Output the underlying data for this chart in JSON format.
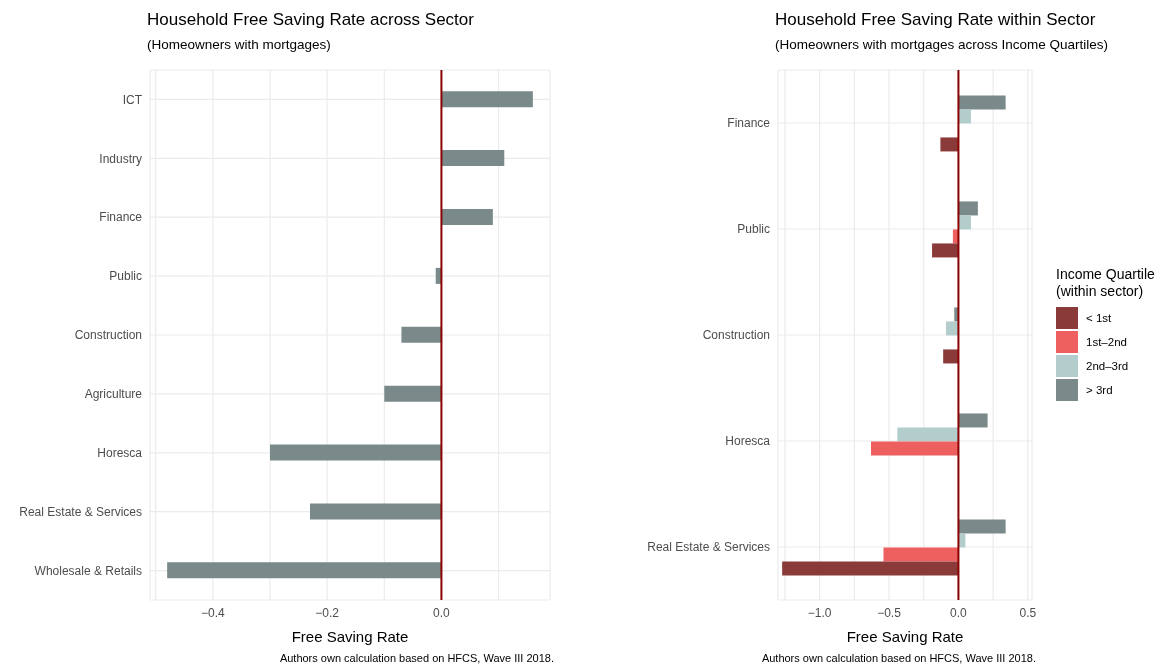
{
  "chart_data": [
    {
      "type": "bar",
      "orientation": "horizontal",
      "title": "Household Free Saving Rate across Sector",
      "subtitle": "(Homeowners with mortgages)",
      "xlabel": "Free Saving Rate",
      "categories": [
        "ICT",
        "Industry",
        "Finance",
        "Public",
        "Construction",
        "Agriculture",
        "Horesca",
        "Real Estate & Services",
        "Wholesale & Retails"
      ],
      "values": [
        0.16,
        0.11,
        0.09,
        -0.01,
        -0.07,
        -0.1,
        -0.3,
        -0.23,
        -0.48
      ],
      "color": "#7a8a8a",
      "xlim": [
        -0.51,
        0.19
      ],
      "xticks": [
        {
          "value": -0.5,
          "label": null
        },
        {
          "value": -0.4,
          "label": "−0.4"
        },
        {
          "value": -0.3,
          "label": null
        },
        {
          "value": -0.2,
          "label": "−0.2"
        },
        {
          "value": -0.1,
          "label": null
        },
        {
          "value": 0,
          "label": "0.0"
        },
        {
          "value": 0.1,
          "label": null
        }
      ],
      "ref_lines": [
        {
          "axis": "x",
          "value": 0,
          "color": "#8b0000"
        }
      ],
      "grid": true,
      "annotations": [
        "Authors own calculation based on HFCS, Wave III 2018."
      ]
    },
    {
      "type": "bar",
      "orientation": "horizontal",
      "title": "Household Free Saving Rate within Sector",
      "subtitle": "(Homeowners with mortgages across Income Quartiles)",
      "xlabel": "Free Saving Rate",
      "categories": [
        "Finance",
        "Public",
        "Construction",
        "Horesca",
        "Real Estate & Services"
      ],
      "series": [
        {
          "name": "< 1st",
          "color": "#8b3a3a",
          "values": [
            -0.13,
            -0.19,
            -0.11,
            null,
            -1.27
          ]
        },
        {
          "name": "1st–2nd",
          "color": "#ee5f5f",
          "values": [
            null,
            -0.04,
            null,
            -0.63,
            -0.54
          ]
        },
        {
          "name": "2nd–3rd",
          "color": "#b3cccc",
          "values": [
            0.09,
            0.09,
            -0.09,
            -0.44,
            0.05
          ]
        },
        {
          "name": "> 3rd",
          "color": "#7a8a8a",
          "values": [
            0.34,
            0.14,
            -0.03,
            0.21,
            0.34
          ]
        }
      ],
      "legend": "right",
      "legend_title": "Income Quartile\n(within sector)",
      "xlim": [
        -1.3,
        0.53
      ],
      "xticks": [
        {
          "value": -1.25,
          "label": null
        },
        {
          "value": -1,
          "label": "−1.0"
        },
        {
          "value": -0.75,
          "label": null
        },
        {
          "value": -0.5,
          "label": "−0.5"
        },
        {
          "value": -0.25,
          "label": null
        },
        {
          "value": 0,
          "label": "0.0"
        },
        {
          "value": 0.25,
          "label": null
        },
        0.5
      ],
      "ref_lines": [
        {
          "axis": "x",
          "value": 0,
          "color": "#8b0000"
        }
      ],
      "grid": true,
      "annotations": [
        "Authors own calculation based on HFCS, Wave III 2018."
      ]
    }
  ]
}
